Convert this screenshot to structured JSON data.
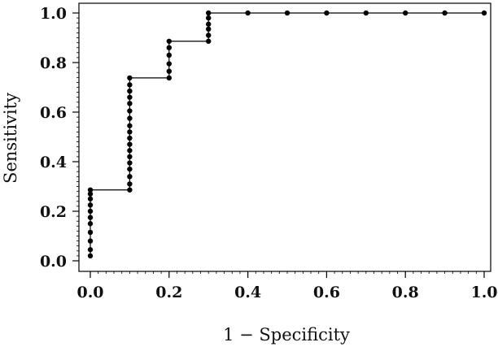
{
  "chart_data": {
    "type": "line",
    "title": "",
    "xlabel": "1 − Specificity",
    "ylabel": "Sensitivity",
    "xlim": [
      0,
      1
    ],
    "ylim": [
      0,
      1
    ],
    "x_ticks": [
      "0.0",
      "0.2",
      "0.4",
      "0.6",
      "0.8",
      "1.0"
    ],
    "y_ticks": [
      "0.0",
      "0.2",
      "0.4",
      "0.6",
      "0.8",
      "1.0"
    ],
    "grid": false,
    "legend": "none",
    "line_color": "#000000",
    "marker": "filled-circle",
    "step_path": [
      [
        0,
        0.02
      ],
      [
        0,
        0.286
      ],
      [
        0.1,
        0.286
      ],
      [
        0.1,
        0.738
      ],
      [
        0.2,
        0.738
      ],
      [
        0.2,
        0.886
      ],
      [
        0.3,
        0.886
      ],
      [
        0.3,
        1.0
      ],
      [
        1.0,
        1.0
      ]
    ],
    "points": [
      [
        0,
        0.02
      ],
      [
        0,
        0.045
      ],
      [
        0,
        0.08
      ],
      [
        0,
        0.115
      ],
      [
        0,
        0.15
      ],
      [
        0,
        0.175
      ],
      [
        0,
        0.2
      ],
      [
        0,
        0.225
      ],
      [
        0,
        0.25
      ],
      [
        0,
        0.27
      ],
      [
        0,
        0.286
      ],
      [
        0.1,
        0.286
      ],
      [
        0.1,
        0.31
      ],
      [
        0.1,
        0.34
      ],
      [
        0.1,
        0.37
      ],
      [
        0.1,
        0.395
      ],
      [
        0.1,
        0.42
      ],
      [
        0.1,
        0.445
      ],
      [
        0.1,
        0.47
      ],
      [
        0.1,
        0.495
      ],
      [
        0.1,
        0.52
      ],
      [
        0.1,
        0.545
      ],
      [
        0.1,
        0.575
      ],
      [
        0.1,
        0.605
      ],
      [
        0.1,
        0.635
      ],
      [
        0.1,
        0.66
      ],
      [
        0.1,
        0.685
      ],
      [
        0.1,
        0.71
      ],
      [
        0.1,
        0.738
      ],
      [
        0.2,
        0.738
      ],
      [
        0.2,
        0.765
      ],
      [
        0.2,
        0.795
      ],
      [
        0.2,
        0.83
      ],
      [
        0.2,
        0.86
      ],
      [
        0.2,
        0.886
      ],
      [
        0.3,
        0.886
      ],
      [
        0.3,
        0.91
      ],
      [
        0.3,
        0.935
      ],
      [
        0.3,
        0.955
      ],
      [
        0.3,
        0.98
      ],
      [
        0.3,
        1.0
      ],
      [
        0.4,
        1.0
      ],
      [
        0.5,
        1.0
      ],
      [
        0.6,
        1.0
      ],
      [
        0.7,
        1.0
      ],
      [
        0.8,
        1.0
      ],
      [
        0.9,
        1.0
      ],
      [
        1.0,
        1.0
      ]
    ]
  }
}
